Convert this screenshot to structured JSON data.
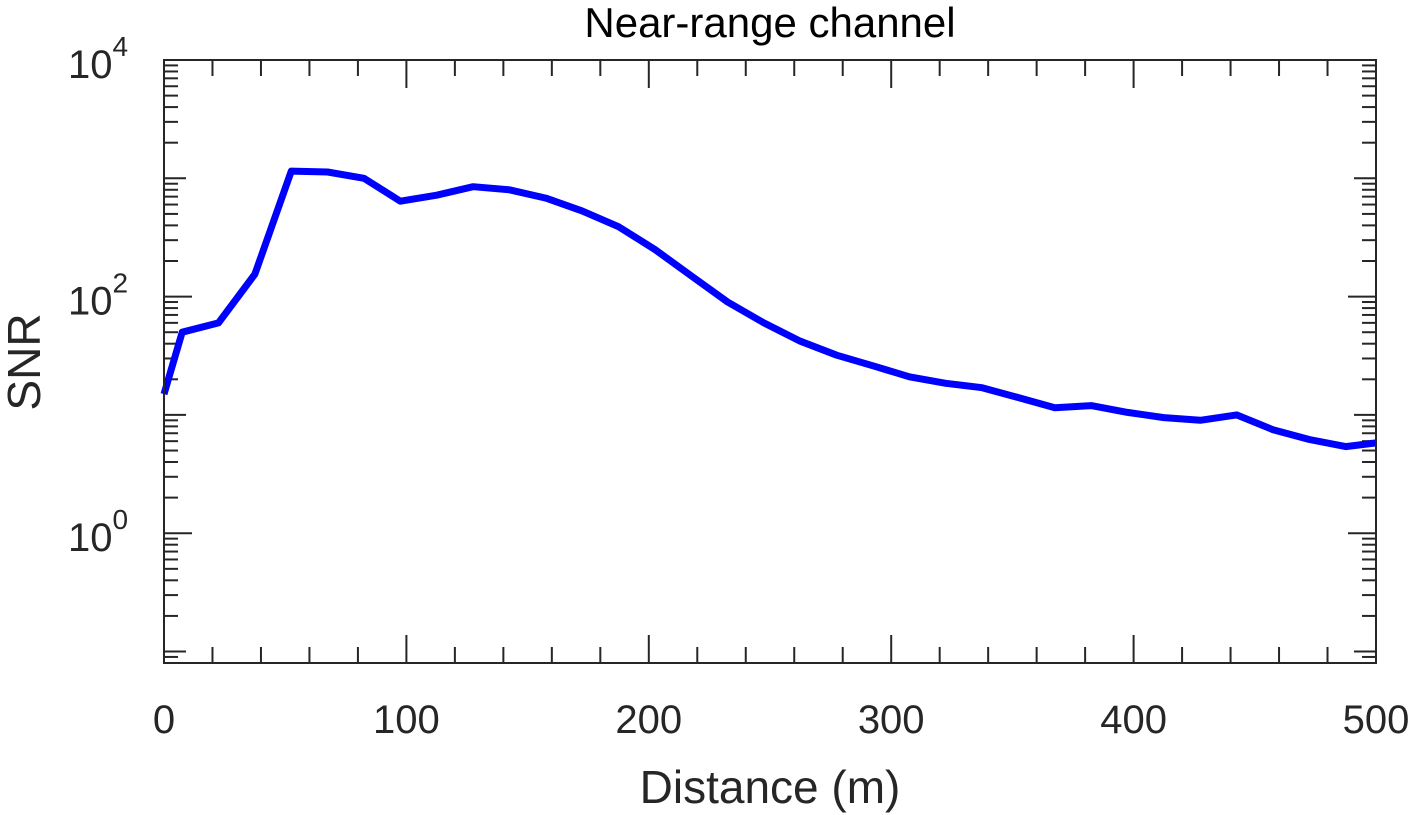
{
  "chart_data": {
    "type": "line",
    "title": "Near-range channel",
    "xlabel": "Distance (m)",
    "ylabel": "SNR",
    "xlim": [
      0,
      500
    ],
    "ylim": [
      0.08,
      10000
    ],
    "yscale": "log",
    "grid": false,
    "xticks": [
      0,
      100,
      200,
      300,
      400,
      500
    ],
    "xtick_labels": [
      "0",
      "100",
      "200",
      "300",
      "400",
      "500"
    ],
    "yticks": [
      1,
      100,
      10000
    ],
    "ytick_labels": [
      {
        "base": "10",
        "exp": "0"
      },
      {
        "base": "10",
        "exp": "2"
      },
      {
        "base": "10",
        "exp": "4"
      }
    ],
    "series": [
      {
        "color": "#0000ff",
        "x": [
          0,
          7.5,
          22.5,
          37.5,
          52.5,
          67.5,
          82.5,
          97.5,
          112.5,
          127.5,
          142.5,
          157.5,
          172.5,
          187.5,
          202.5,
          217.5,
          232.5,
          247.5,
          262.5,
          277.5,
          292.5,
          307.5,
          322.5,
          337.5,
          352.5,
          367.5,
          382.5,
          397.5,
          412.5,
          427.5,
          442.5,
          457.5,
          472.5,
          487.5,
          500
        ],
        "y": [
          15,
          50,
          60,
          155,
          1150,
          1130,
          1000,
          640,
          720,
          850,
          800,
          680,
          530,
          390,
          250,
          150,
          90,
          60,
          42,
          32,
          26,
          21,
          18.5,
          17,
          14,
          11.5,
          12,
          10.5,
          9.5,
          9,
          10,
          7.5,
          6.2,
          5.4,
          5.8
        ]
      }
    ]
  }
}
